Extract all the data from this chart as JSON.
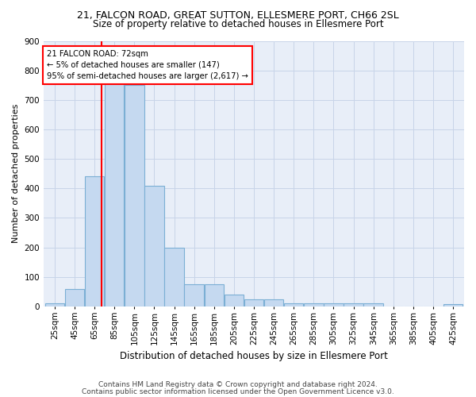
{
  "title1": "21, FALCON ROAD, GREAT SUTTON, ELLESMERE PORT, CH66 2SL",
  "title2": "Size of property relative to detached houses in Ellesmere Port",
  "xlabel": "Distribution of detached houses by size in Ellesmere Port",
  "ylabel": "Number of detached properties",
  "footnote1": "Contains HM Land Registry data © Crown copyright and database right 2024.",
  "footnote2": "Contains public sector information licensed under the Open Government Licence v3.0.",
  "bar_color": "#c5d9f0",
  "bar_edge_color": "#7bafd4",
  "grid_color": "#c8d4e8",
  "background_color": "#e8eef8",
  "property_size": 72,
  "property_line_color": "red",
  "annotation_text": "21 FALCON ROAD: 72sqm\n← 5% of detached houses are smaller (147)\n95% of semi-detached houses are larger (2,617) →",
  "annotation_box_color": "red",
  "categories": [
    "25sqm",
    "45sqm",
    "65sqm",
    "85sqm",
    "105sqm",
    "125sqm",
    "145sqm",
    "165sqm",
    "185sqm",
    "205sqm",
    "225sqm",
    "245sqm",
    "265sqm",
    "285sqm",
    "305sqm",
    "325sqm",
    "345sqm",
    "365sqm",
    "385sqm",
    "405sqm",
    "425sqm"
  ],
  "values": [
    10,
    60,
    440,
    755,
    750,
    410,
    200,
    75,
    75,
    40,
    25,
    25,
    10,
    10,
    10,
    10,
    10,
    0,
    0,
    0,
    7
  ],
  "ylim": [
    0,
    900
  ],
  "yticks": [
    0,
    100,
    200,
    300,
    400,
    500,
    600,
    700,
    800,
    900
  ],
  "title1_fontsize": 9,
  "title2_fontsize": 8.5,
  "ylabel_fontsize": 8,
  "xlabel_fontsize": 8.5,
  "tick_fontsize": 7.5,
  "footnote_fontsize": 6.5
}
